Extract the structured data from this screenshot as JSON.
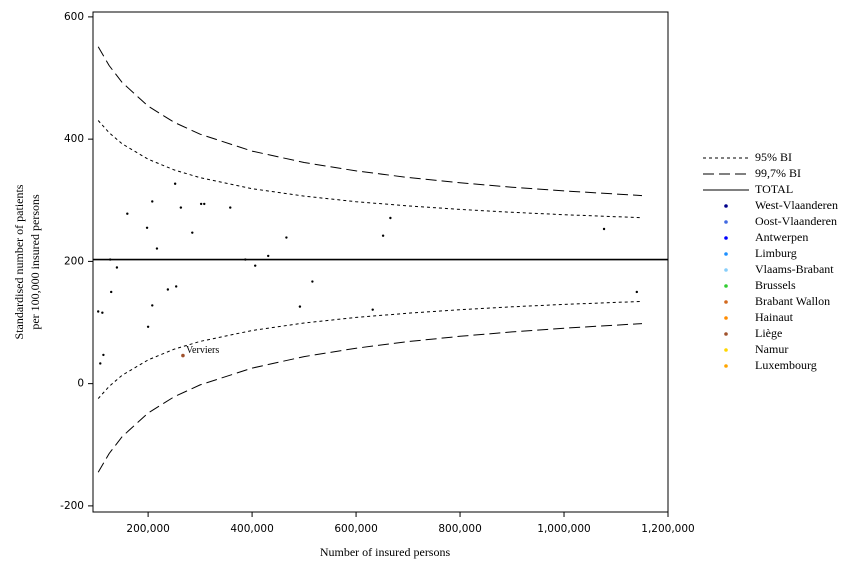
{
  "chart_data": {
    "type": "funnel",
    "xlabel": "Number of insured persons",
    "ylabel": [
      "Standardised number of patients",
      "per 100,000 insured persons"
    ],
    "xlim": [
      94000,
      1200000
    ],
    "ylim": [
      -210,
      608
    ],
    "xticks": [
      {
        "value": 200000,
        "label": "200,000"
      },
      {
        "value": 400000,
        "label": "400,000"
      },
      {
        "value": 600000,
        "label": "600,000"
      },
      {
        "value": 800000,
        "label": "800,000"
      },
      {
        "value": 1000000,
        "label": "1,000,000"
      },
      {
        "value": 1200000,
        "label": "1,200,000"
      }
    ],
    "yticks": [
      -200,
      0,
      200,
      400,
      600
    ],
    "limits": [
      {
        "name": "95% BI",
        "dash": "3,3",
        "x": [
          104000,
          125000,
          150000,
          200000,
          250000,
          300000,
          400000,
          500000,
          600000,
          700000,
          800000,
          900000,
          1000000,
          1150000
        ],
        "upper": [
          430.5,
          410.5,
          392.4,
          367.1,
          349.7,
          336.9,
          319,
          306.8,
          297.7,
          290.7,
          285,
          280.3,
          276.4,
          271.4
        ],
        "lower": [
          -24.5,
          -4.5,
          13.6,
          38.9,
          56.3,
          69.1,
          87,
          99.2,
          108.3,
          115.3,
          121,
          125.7,
          129.6,
          134.6
        ]
      },
      {
        "name": "99,7% BI",
        "dash": "11,5",
        "x": [
          104000,
          125000,
          150000,
          200000,
          250000,
          300000,
          400000,
          500000,
          600000,
          700000,
          800000,
          900000,
          1000000,
          1150000
        ],
        "upper": [
          551,
          520.5,
          492.8,
          454.1,
          427.5,
          408,
          380.5,
          361.8,
          348,
          337.2,
          328.5,
          321.3,
          315.3,
          307.7
        ],
        "lower": [
          -145,
          -114.5,
          -86.8,
          -48.1,
          -21.5,
          -2,
          25.5,
          44.2,
          58,
          68.8,
          77.5,
          84.7,
          90.7,
          98.3
        ]
      }
    ],
    "total": {
      "name": "TOTAL",
      "value": 203
    },
    "points": {
      "color": "#000000",
      "x": [
        104000,
        112000,
        114000,
        108000,
        127000,
        129000,
        140000,
        160000,
        198000,
        200000,
        208000,
        208000,
        217000,
        238000,
        252000,
        254000,
        263000,
        285000,
        302000,
        308000,
        358000,
        387000,
        406000,
        431000,
        466000,
        492000,
        516000,
        632000,
        652000,
        666000,
        1077000,
        1140000
      ],
      "y": [
        118,
        116,
        47,
        33,
        203,
        150,
        190,
        278,
        255,
        93,
        298,
        128,
        221,
        154,
        327,
        159,
        288,
        247,
        294,
        294,
        288,
        203,
        193,
        209,
        239,
        126,
        167,
        121,
        242,
        271,
        253,
        150
      ]
    },
    "groups": [
      {
        "name": "West-Vlaanderen",
        "color": "#00008b"
      },
      {
        "name": "Oost-Vlaanderen",
        "color": "#4169e1"
      },
      {
        "name": "Antwerpen",
        "color": "#0000ff"
      },
      {
        "name": "Limburg",
        "color": "#1e90ff"
      },
      {
        "name": "Vlaams-Brabant",
        "color": "#87cefa"
      },
      {
        "name": "Brussels",
        "color": "#32cd32"
      },
      {
        "name": "Brabant Wallon",
        "color": "#d2691e"
      },
      {
        "name": "Hainaut",
        "color": "#ff8c00"
      },
      {
        "name": "Liège",
        "color": "#a0522d",
        "x": [
          267000
        ],
        "y": [
          46
        ],
        "labels": [
          "Verviers"
        ]
      },
      {
        "name": "Namur",
        "color": "#ffd700"
      },
      {
        "name": "Luxembourg",
        "color": "#ffa500"
      }
    ]
  }
}
